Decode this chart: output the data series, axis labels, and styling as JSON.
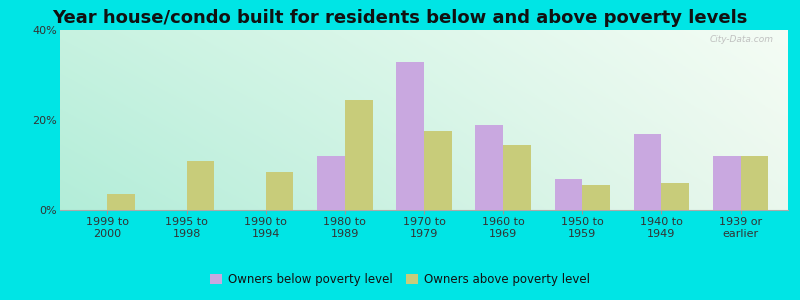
{
  "title": "Year house/condo built for residents below and above poverty levels",
  "categories": [
    "1999 to\n2000",
    "1995 to\n1998",
    "1990 to\n1994",
    "1980 to\n1989",
    "1970 to\n1979",
    "1960 to\n1969",
    "1950 to\n1959",
    "1940 to\n1949",
    "1939 or\nearlier"
  ],
  "below_poverty": [
    0.0,
    0.0,
    0.0,
    12.0,
    33.0,
    19.0,
    7.0,
    17.0,
    12.0
  ],
  "above_poverty": [
    3.5,
    11.0,
    8.5,
    24.5,
    17.5,
    14.5,
    5.5,
    6.0,
    12.0
  ],
  "below_color": "#c9a8e0",
  "above_color": "#c8cc7a",
  "ylim": [
    0,
    40
  ],
  "yticks": [
    0,
    20,
    40
  ],
  "ytick_labels": [
    "0%",
    "20%",
    "40%"
  ],
  "background_outer": "#00e5e5",
  "title_fontsize": 13,
  "tick_fontsize": 8,
  "legend_fontsize": 8.5,
  "bar_width": 0.35,
  "legend_below_label": "Owners below poverty level",
  "legend_above_label": "Owners above poverty level"
}
